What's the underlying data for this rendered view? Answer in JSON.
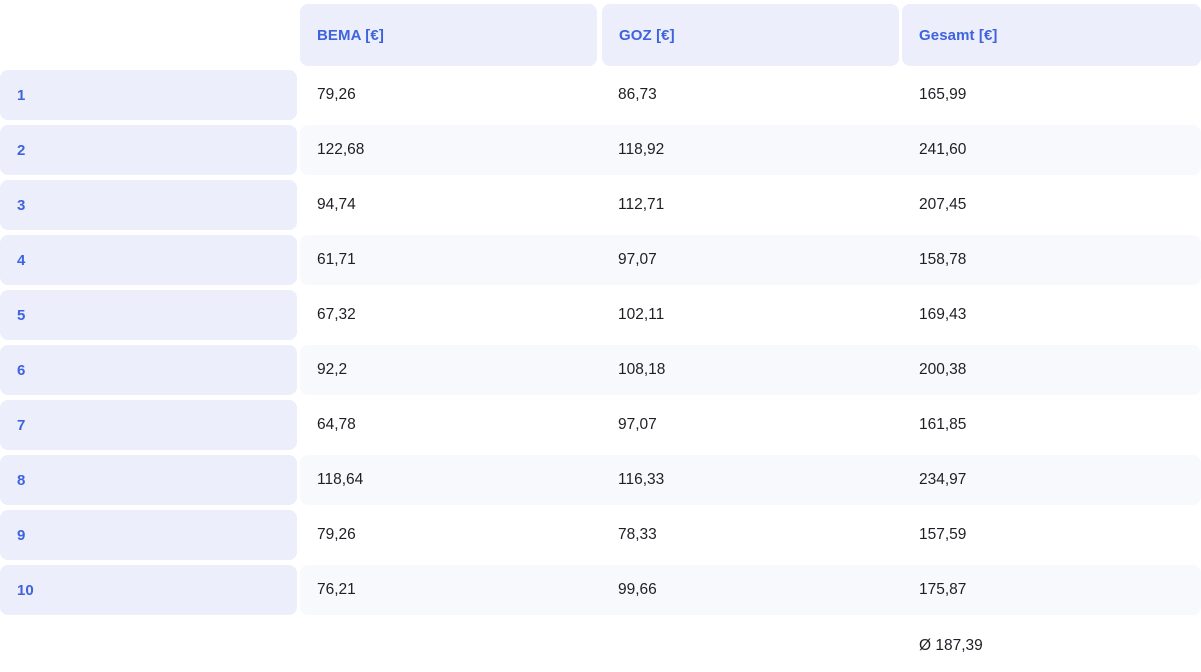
{
  "table": {
    "columns": [
      {
        "id": "bema",
        "label": "BEMA [€]"
      },
      {
        "id": "goz",
        "label": "GOZ [€]"
      },
      {
        "id": "gesamt",
        "label": "Gesamt [€]"
      }
    ],
    "rows": [
      {
        "label": "1",
        "bema": "79,26",
        "goz": "86,73",
        "gesamt": "165,99"
      },
      {
        "label": "2",
        "bema": "122,68",
        "goz": "118,92",
        "gesamt": "241,60"
      },
      {
        "label": "3",
        "bema": "94,74",
        "goz": "112,71",
        "gesamt": "207,45"
      },
      {
        "label": "4",
        "bema": "61,71",
        "goz": "97,07",
        "gesamt": "158,78"
      },
      {
        "label": "5",
        "bema": "67,32",
        "goz": "102,11",
        "gesamt": "169,43"
      },
      {
        "label": "6",
        "bema": "92,2",
        "goz": "108,18",
        "gesamt": "200,38"
      },
      {
        "label": "7",
        "bema": "64,78",
        "goz": "97,07",
        "gesamt": "161,85"
      },
      {
        "label": "8",
        "bema": "118,64",
        "goz": "116,33",
        "gesamt": "234,97"
      },
      {
        "label": "9",
        "bema": "79,26",
        "goz": "78,33",
        "gesamt": "157,59"
      },
      {
        "label": "10",
        "bema": "76,21",
        "goz": "99,66",
        "gesamt": "175,87"
      }
    ],
    "footer": {
      "gesamt_average": "Ø 187,39"
    }
  },
  "colors": {
    "accent_blue": "#3e63dd",
    "header_cell_bg": "#eceefb",
    "stripe_bg": "#f8f9fd",
    "text": "#1e1f24",
    "page_bg": "#ffffff"
  }
}
